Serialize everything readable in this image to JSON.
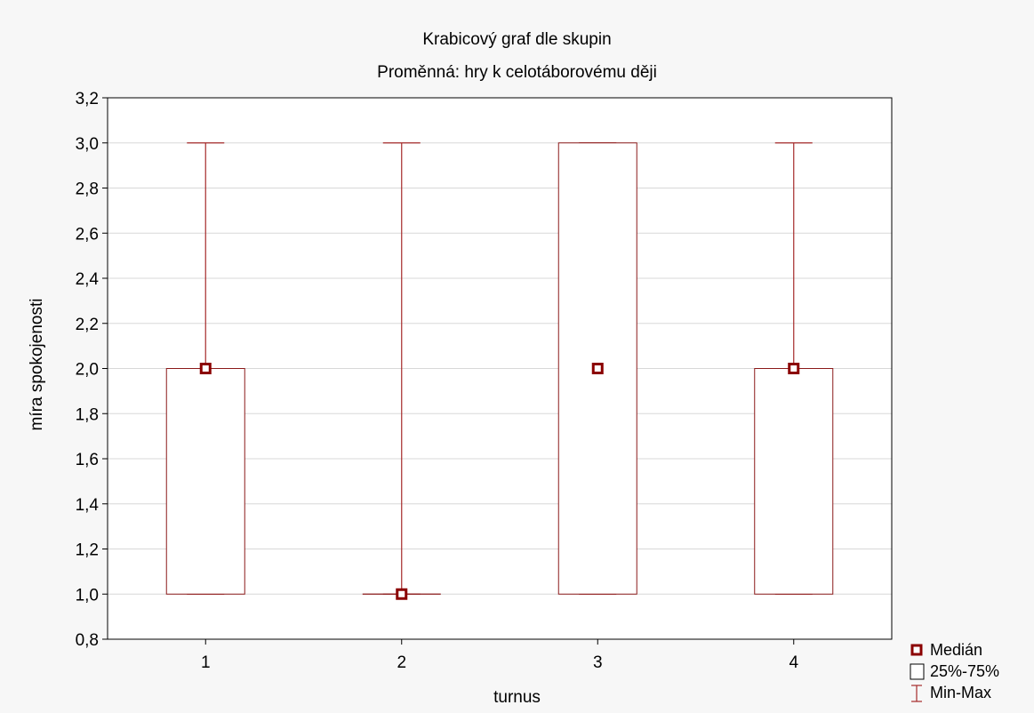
{
  "chart_data": {
    "type": "box",
    "title": "Krabicový graf dle skupin",
    "subtitle": "Proměnná: hry k celotáborovému ději",
    "xlabel": "turnus",
    "ylabel": "míra spokojenosti",
    "categories": [
      "1",
      "2",
      "3",
      "4"
    ],
    "ylim": [
      0.8,
      3.2
    ],
    "yticks": [
      0.8,
      1.0,
      1.2,
      1.4,
      1.6,
      1.8,
      2.0,
      2.2,
      2.4,
      2.6,
      2.8,
      3.0,
      3.2
    ],
    "ytick_labels": [
      "0,8",
      "1,0",
      "1,2",
      "1,4",
      "1,6",
      "1,8",
      "2,0",
      "2,2",
      "2,4",
      "2,6",
      "2,8",
      "3,0",
      "3,2"
    ],
    "grid": true,
    "legend_position": "bottom-right",
    "series": [
      {
        "category": "1",
        "min": 1.0,
        "q1": 1.0,
        "median": 2.0,
        "q3": 2.0,
        "max": 3.0
      },
      {
        "category": "2",
        "min": 1.0,
        "q1": 1.0,
        "median": 1.0,
        "q3": 1.0,
        "max": 3.0
      },
      {
        "category": "3",
        "min": 1.0,
        "q1": 1.0,
        "median": 2.0,
        "q3": 3.0,
        "max": 3.0
      },
      {
        "category": "4",
        "min": 1.0,
        "q1": 1.0,
        "median": 2.0,
        "q3": 2.0,
        "max": 3.0
      }
    ],
    "legend": {
      "median": "Medián",
      "box": "25%-75%",
      "range": "Min-Max"
    },
    "colors": {
      "whisker": "#a52a2a",
      "box": "#8b1a1a",
      "median": "#8b0000",
      "grid": "#d8d8d8",
      "background": "#f7f7f7",
      "plot_background": "#ffffff"
    }
  }
}
